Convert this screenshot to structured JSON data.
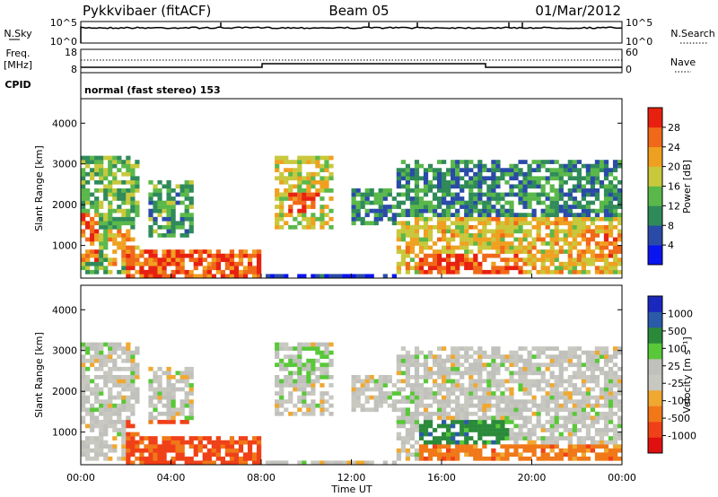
{
  "header": {
    "station": "Pykkvibaer (fitACF)",
    "beam": "Beam 05",
    "date": "01/Mar/2012"
  },
  "top_panels": {
    "nsky_label": "N.Sky",
    "nsky_ticks": [
      "10^5",
      "10^0"
    ],
    "nsearch_label": "N.Search",
    "nsearch_ticks": [
      "10^5",
      "10^0"
    ],
    "freq_label_1": "Freq.",
    "freq_label_2": "[MHz]",
    "freq_ticks": [
      "18",
      "8"
    ],
    "nave_label": "Nave",
    "nave_ticks": [
      "60",
      "0"
    ],
    "cpid_label": "CPID",
    "cpid_text": "normal (fast stereo) 153"
  },
  "colors": {
    "power_scale": [
      "#0a14f0",
      "#2a4aa8",
      "#2f8a5a",
      "#5ab84a",
      "#c8c83c",
      "#f0a020",
      "#f06818",
      "#e82010"
    ],
    "velocity_scale": [
      "#e01010",
      "#f04018",
      "#f07818",
      "#f0a830",
      "#c8c8c0",
      "#c0c0bc",
      "#58c838",
      "#2a8a3a",
      "#2a5aa8",
      "#1a28c0"
    ]
  },
  "chart_data": [
    {
      "type": "heatmap",
      "title": "",
      "xlabel": "Time UT",
      "ylabel": "Slant Range [km]",
      "x_ticks": [
        "00:00",
        "04:00",
        "08:00",
        "12:00",
        "16:00",
        "20:00",
        "00:00"
      ],
      "y_ticks": [
        "1000",
        "2000",
        "3000",
        "4000"
      ],
      "xlim": [
        0,
        24
      ],
      "ylim": [
        200,
        4600
      ],
      "colorbar_label": "Power [dB]",
      "colorbar_ticks": [
        "4",
        "8",
        "12",
        "16",
        "20",
        "24",
        "28"
      ],
      "colorbar_range": [
        0,
        32
      ]
    },
    {
      "type": "heatmap",
      "title": "",
      "xlabel": "Time UT",
      "ylabel": "Slant Range [km]",
      "x_ticks": [
        "00:00",
        "04:00",
        "08:00",
        "12:00",
        "16:00",
        "20:00",
        "00:00"
      ],
      "y_ticks": [
        "1000",
        "2000",
        "3000",
        "4000"
      ],
      "xlim": [
        0,
        24
      ],
      "ylim": [
        200,
        4600
      ],
      "colorbar_label": "Velocity [m s⁻¹]",
      "colorbar_ticks": [
        "1000",
        "500",
        "100",
        "25",
        "-25",
        "-100",
        "-500",
        "-1000"
      ]
    }
  ],
  "x_axis_title": "Time UT"
}
